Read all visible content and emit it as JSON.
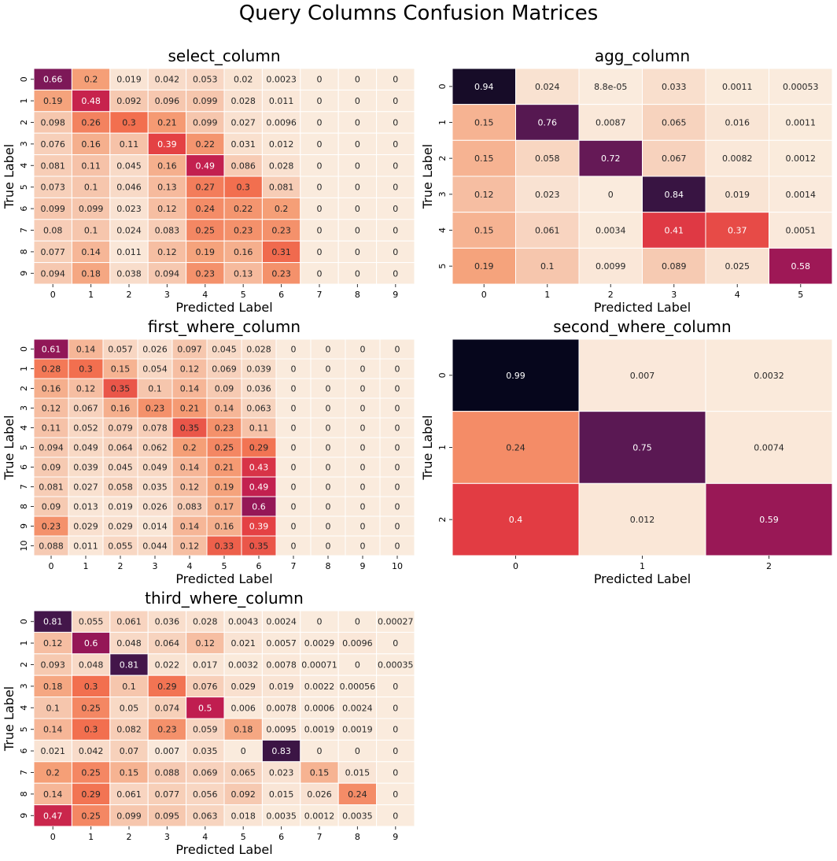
{
  "page_title": "Query Columns Confusion Matrices",
  "chart_data": [
    {
      "type": "heatmap",
      "title": "select_column",
      "xlabel": "Predicted Label",
      "ylabel": "True Label",
      "x_ticks": [
        "0",
        "1",
        "2",
        "3",
        "4",
        "5",
        "6",
        "7",
        "8",
        "9"
      ],
      "y_ticks": [
        "0",
        "1",
        "2",
        "3",
        "4",
        "5",
        "6",
        "7",
        "8",
        "9"
      ],
      "colormap": "rocket_r",
      "value_range": [
        0,
        1
      ],
      "values": [
        [
          "0.66",
          "0.2",
          "0.019",
          "0.042",
          "0.053",
          "0.02",
          "0.0023",
          "0",
          "0",
          "0"
        ],
        [
          "0.19",
          "0.48",
          "0.092",
          "0.096",
          "0.099",
          "0.028",
          "0.011",
          "0",
          "0",
          "0"
        ],
        [
          "0.098",
          "0.26",
          "0.3",
          "0.21",
          "0.099",
          "0.027",
          "0.0096",
          "0",
          "0",
          "0"
        ],
        [
          "0.076",
          "0.16",
          "0.11",
          "0.39",
          "0.22",
          "0.031",
          "0.012",
          "0",
          "0",
          "0"
        ],
        [
          "0.081",
          "0.11",
          "0.045",
          "0.16",
          "0.49",
          "0.086",
          "0.028",
          "0",
          "0",
          "0"
        ],
        [
          "0.073",
          "0.1",
          "0.046",
          "0.13",
          "0.27",
          "0.3",
          "0.081",
          "0",
          "0",
          "0"
        ],
        [
          "0.099",
          "0.099",
          "0.023",
          "0.12",
          "0.24",
          "0.22",
          "0.2",
          "0",
          "0",
          "0"
        ],
        [
          "0.08",
          "0.1",
          "0.024",
          "0.083",
          "0.25",
          "0.23",
          "0.23",
          "0",
          "0",
          "0"
        ],
        [
          "0.077",
          "0.14",
          "0.011",
          "0.12",
          "0.19",
          "0.16",
          "0.31",
          "0",
          "0",
          "0"
        ],
        [
          "0.094",
          "0.18",
          "0.038",
          "0.094",
          "0.23",
          "0.13",
          "0.23",
          "0",
          "0",
          "0"
        ]
      ]
    },
    {
      "type": "heatmap",
      "title": "agg_column",
      "xlabel": "Predicted Label",
      "ylabel": "True Label",
      "x_ticks": [
        "0",
        "1",
        "2",
        "3",
        "4",
        "5"
      ],
      "y_ticks": [
        "0",
        "1",
        "2",
        "3",
        "4",
        "5"
      ],
      "colormap": "rocket_r",
      "value_range": [
        0,
        1
      ],
      "values": [
        [
          "0.94",
          "0.024",
          "8.8e-05",
          "0.033",
          "0.0011",
          "0.00053"
        ],
        [
          "0.15",
          "0.76",
          "0.0087",
          "0.065",
          "0.016",
          "0.0011"
        ],
        [
          "0.15",
          "0.058",
          "0.72",
          "0.067",
          "0.0082",
          "0.0012"
        ],
        [
          "0.12",
          "0.023",
          "0",
          "0.84",
          "0.019",
          "0.0014"
        ],
        [
          "0.15",
          "0.061",
          "0.0034",
          "0.41",
          "0.37",
          "0.0051"
        ],
        [
          "0.19",
          "0.1",
          "0.0099",
          "0.089",
          "0.025",
          "0.58"
        ]
      ]
    },
    {
      "type": "heatmap",
      "title": "first_where_column",
      "xlabel": "Predicted Label",
      "ylabel": "True Label",
      "x_ticks": [
        "0",
        "1",
        "2",
        "3",
        "4",
        "5",
        "6",
        "7",
        "8",
        "9",
        "10"
      ],
      "y_ticks": [
        "0",
        "1",
        "2",
        "3",
        "4",
        "5",
        "6",
        "7",
        "8",
        "9",
        "10"
      ],
      "colormap": "rocket_r",
      "value_range": [
        0,
        1
      ],
      "values": [
        [
          "0.61",
          "0.14",
          "0.057",
          "0.026",
          "0.097",
          "0.045",
          "0.028",
          "0",
          "0",
          "0",
          "0"
        ],
        [
          "0.28",
          "0.3",
          "0.15",
          "0.054",
          "0.12",
          "0.069",
          "0.039",
          "0",
          "0",
          "0",
          "0"
        ],
        [
          "0.16",
          "0.12",
          "0.35",
          "0.1",
          "0.14",
          "0.09",
          "0.036",
          "0",
          "0",
          "0",
          "0"
        ],
        [
          "0.12",
          "0.067",
          "0.16",
          "0.23",
          "0.21",
          "0.14",
          "0.063",
          "0",
          "0",
          "0",
          "0"
        ],
        [
          "0.11",
          "0.052",
          "0.079",
          "0.078",
          "0.35",
          "0.23",
          "0.11",
          "0",
          "0",
          "0",
          "0"
        ],
        [
          "0.094",
          "0.049",
          "0.064",
          "0.062",
          "0.2",
          "0.25",
          "0.29",
          "0",
          "0",
          "0",
          "0"
        ],
        [
          "0.09",
          "0.039",
          "0.045",
          "0.049",
          "0.14",
          "0.21",
          "0.43",
          "0",
          "0",
          "0",
          "0"
        ],
        [
          "0.081",
          "0.027",
          "0.058",
          "0.035",
          "0.12",
          "0.19",
          "0.49",
          "0",
          "0",
          "0",
          "0"
        ],
        [
          "0.09",
          "0.013",
          "0.019",
          "0.026",
          "0.083",
          "0.17",
          "0.6",
          "0",
          "0",
          "0",
          "0"
        ],
        [
          "0.23",
          "0.029",
          "0.029",
          "0.014",
          "0.14",
          "0.16",
          "0.39",
          "0",
          "0",
          "0",
          "0"
        ],
        [
          "0.088",
          "0.011",
          "0.055",
          "0.044",
          "0.12",
          "0.33",
          "0.35",
          "0",
          "0",
          "0",
          "0"
        ]
      ]
    },
    {
      "type": "heatmap",
      "title": "second_where_column",
      "xlabel": "Predicted Label",
      "ylabel": "True Label",
      "x_ticks": [
        "0",
        "1",
        "2"
      ],
      "y_ticks": [
        "0",
        "1",
        "2"
      ],
      "colormap": "rocket_r",
      "value_range": [
        0,
        1
      ],
      "values": [
        [
          "0.99",
          "0.007",
          "0.0032"
        ],
        [
          "0.24",
          "0.75",
          "0.0074"
        ],
        [
          "0.4",
          "0.012",
          "0.59"
        ]
      ]
    },
    {
      "type": "heatmap",
      "title": "third_where_column",
      "xlabel": "Predicted Label",
      "ylabel": "True Label",
      "x_ticks": [
        "0",
        "1",
        "2",
        "3",
        "4",
        "5",
        "6",
        "7",
        "8",
        "9"
      ],
      "y_ticks": [
        "0",
        "1",
        "2",
        "3",
        "4",
        "5",
        "6",
        "7",
        "8",
        "9"
      ],
      "colormap": "rocket_r",
      "value_range": [
        0,
        1
      ],
      "values": [
        [
          "0.81",
          "0.055",
          "0.061",
          "0.036",
          "0.028",
          "0.0043",
          "0.0024",
          "0",
          "0",
          "0.00027"
        ],
        [
          "0.12",
          "0.6",
          "0.048",
          "0.064",
          "0.12",
          "0.021",
          "0.0057",
          "0.0029",
          "0.0096",
          "0"
        ],
        [
          "0.093",
          "0.048",
          "0.81",
          "0.022",
          "0.017",
          "0.0032",
          "0.0078",
          "0.00071",
          "0",
          "0.00035"
        ],
        [
          "0.18",
          "0.3",
          "0.1",
          "0.29",
          "0.076",
          "0.029",
          "0.019",
          "0.0022",
          "0.00056",
          "0"
        ],
        [
          "0.1",
          "0.25",
          "0.05",
          "0.074",
          "0.5",
          "0.006",
          "0.0078",
          "0.0006",
          "0.0024",
          "0"
        ],
        [
          "0.14",
          "0.3",
          "0.082",
          "0.23",
          "0.059",
          "0.18",
          "0.0095",
          "0.0019",
          "0.0019",
          "0"
        ],
        [
          "0.021",
          "0.042",
          "0.07",
          "0.007",
          "0.035",
          "0",
          "0.83",
          "0",
          "0",
          "0"
        ],
        [
          "0.2",
          "0.25",
          "0.15",
          "0.088",
          "0.069",
          "0.065",
          "0.023",
          "0.15",
          "0.015",
          "0"
        ],
        [
          "0.14",
          "0.29",
          "0.061",
          "0.077",
          "0.056",
          "0.092",
          "0.015",
          "0.026",
          "0.24",
          "0"
        ],
        [
          "0.47",
          "0.25",
          "0.099",
          "0.095",
          "0.063",
          "0.018",
          "0.0035",
          "0.0012",
          "0.0035",
          "0"
        ]
      ]
    }
  ]
}
